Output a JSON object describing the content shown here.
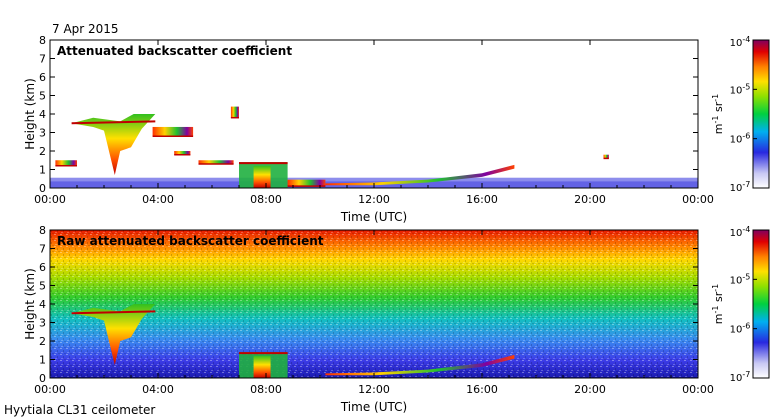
{
  "date": "7 Apr 2015",
  "site": "Hyytiala CL31 ceilometer",
  "chart_data": [
    {
      "type": "heatmap",
      "title": "Attenuated backscatter coefficient",
      "xlabel": "Time (UTC)",
      "ylabel": "Height (km)",
      "xlim": [
        0,
        24
      ],
      "ylim": [
        0,
        8
      ],
      "x_tick_labels": [
        "00:00",
        "04:00",
        "08:00",
        "12:00",
        "16:00",
        "20:00",
        "00:00"
      ],
      "y_tick_labels": [
        "0",
        "1",
        "2",
        "3",
        "4",
        "5",
        "6",
        "7",
        "8"
      ],
      "colorbar": {
        "label_base": "m",
        "label_exp1": "-1",
        "label_mid": " sr",
        "label_exp2": "-1",
        "scale": "log",
        "ticks": [
          {
            "mantissa": "10",
            "exp": "-4"
          },
          {
            "mantissa": "10",
            "exp": "-5"
          },
          {
            "mantissa": "10",
            "exp": "-6"
          },
          {
            "mantissa": "10",
            "exp": "-7"
          }
        ]
      },
      "features": [
        {
          "name": "near-surface aerosol layer",
          "t_start": 0,
          "t_end": 24,
          "h_bottom": 0,
          "h_top": 0.55
        },
        {
          "name": "cloud layer",
          "t_start": 0.2,
          "t_end": 1.0,
          "h_bottom": 1.2,
          "h_top": 1.5
        },
        {
          "name": "precipitating cloud",
          "t_start": 0.8,
          "t_end": 3.9,
          "h_bottom": 0.6,
          "h_top": 4.0
        },
        {
          "name": "cloud layer",
          "t_start": 3.8,
          "t_end": 5.3,
          "h_bottom": 2.8,
          "h_top": 3.3
        },
        {
          "name": "cloud patch",
          "t_start": 4.6,
          "t_end": 5.2,
          "h_bottom": 1.8,
          "h_top": 2.0
        },
        {
          "name": "cloud layer",
          "t_start": 5.5,
          "t_end": 6.8,
          "h_bottom": 1.3,
          "h_top": 1.5
        },
        {
          "name": "cloud patch",
          "t_start": 6.7,
          "t_end": 7.0,
          "h_bottom": 3.8,
          "h_top": 4.4
        },
        {
          "name": "low cloud and rain",
          "t_start": 7.0,
          "t_end": 8.8,
          "h_bottom": 0,
          "h_top": 1.4
        },
        {
          "name": "low cloud",
          "t_start": 8.8,
          "t_end": 10.2,
          "h_bottom": 0.1,
          "h_top": 0.45
        },
        {
          "name": "rising cloud base",
          "t_start": 10.2,
          "t_end": 17.2,
          "h_bottom": 0.15,
          "h_top": 1.3
        },
        {
          "name": "isolated cloud",
          "t_start": 20.5,
          "t_end": 20.7,
          "h_bottom": 1.6,
          "h_top": 1.8
        }
      ]
    },
    {
      "type": "heatmap",
      "title": "Raw attenuated backscatter coefficient",
      "xlabel": "Time (UTC)",
      "ylabel": "Height (km)",
      "xlim": [
        0,
        24
      ],
      "ylim": [
        0,
        8
      ],
      "x_tick_labels": [
        "00:00",
        "04:00",
        "08:00",
        "12:00",
        "16:00",
        "20:00",
        "00:00"
      ],
      "y_tick_labels": [
        "0",
        "1",
        "2",
        "3",
        "4",
        "5",
        "6",
        "7",
        "8"
      ],
      "colorbar": {
        "label_base": "m",
        "label_exp1": "-1",
        "label_mid": " sr",
        "label_exp2": "-1",
        "scale": "log",
        "ticks": [
          {
            "mantissa": "10",
            "exp": "-4"
          },
          {
            "mantissa": "10",
            "exp": "-5"
          },
          {
            "mantissa": "10",
            "exp": "-6"
          },
          {
            "mantissa": "10",
            "exp": "-7"
          }
        ]
      },
      "features": [
        {
          "name": "background noise increasing with height",
          "t_start": 0,
          "t_end": 24,
          "h_bottom": 0,
          "h_top": 7.6
        },
        {
          "name": "precipitating cloud",
          "t_start": 0.8,
          "t_end": 3.9,
          "h_bottom": 0.6,
          "h_top": 4.0
        },
        {
          "name": "low cloud and rain",
          "t_start": 7.0,
          "t_end": 8.8,
          "h_bottom": 0,
          "h_top": 1.4
        },
        {
          "name": "rising cloud base",
          "t_start": 10.2,
          "t_end": 17.2,
          "h_bottom": 0.15,
          "h_top": 1.3
        }
      ]
    }
  ]
}
